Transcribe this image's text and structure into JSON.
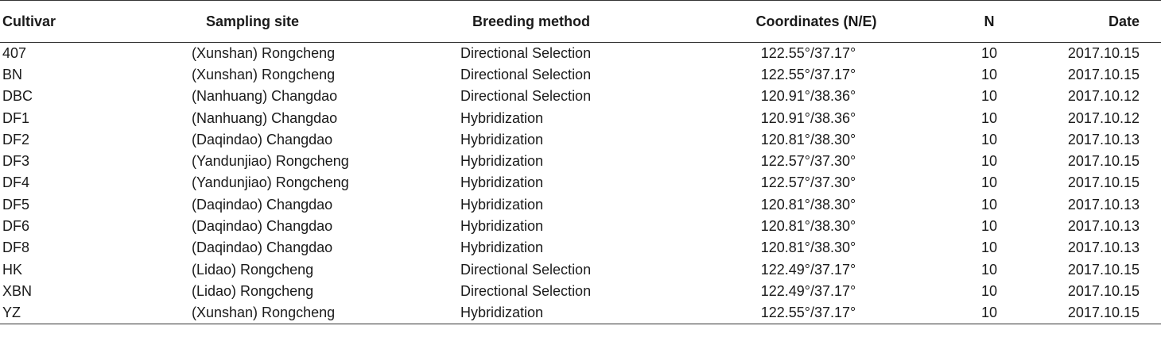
{
  "table": {
    "headers": [
      "Cultivar",
      "Sampling site",
      "Breeding method",
      "Coordinates (N/E)",
      "N",
      "Date"
    ],
    "rows": [
      [
        "407",
        "(Xunshan) Rongcheng",
        "Directional Selection",
        "122.55°/37.17°",
        "10",
        "2017.10.15"
      ],
      [
        "BN",
        "(Xunshan) Rongcheng",
        "Directional Selection",
        "122.55°/37.17°",
        "10",
        "2017.10.15"
      ],
      [
        "DBC",
        "(Nanhuang) Changdao",
        "Directional Selection",
        "120.91°/38.36°",
        "10",
        "2017.10.12"
      ],
      [
        "DF1",
        "(Nanhuang) Changdao",
        "Hybridization",
        "120.91°/38.36°",
        "10",
        "2017.10.12"
      ],
      [
        "DF2",
        "(Daqindao) Changdao",
        "Hybridization",
        "120.81°/38.30°",
        "10",
        "2017.10.13"
      ],
      [
        "DF3",
        "(Yandunjiao) Rongcheng",
        "Hybridization",
        "122.57°/37.30°",
        "10",
        "2017.10.15"
      ],
      [
        "DF4",
        "(Yandunjiao) Rongcheng",
        "Hybridization",
        "122.57°/37.30°",
        "10",
        "2017.10.15"
      ],
      [
        "DF5",
        "(Daqindao) Changdao",
        "Hybridization",
        "120.81°/38.30°",
        "10",
        "2017.10.13"
      ],
      [
        "DF6",
        "(Daqindao) Changdao",
        "Hybridization",
        "120.81°/38.30°",
        "10",
        "2017.10.13"
      ],
      [
        "DF8",
        "(Daqindao) Changdao",
        "Hybridization",
        "120.81°/38.30°",
        "10",
        "2017.10.13"
      ],
      [
        "HK",
        "(Lidao) Rongcheng",
        "Directional Selection",
        "122.49°/37.17°",
        "10",
        "2017.10.15"
      ],
      [
        "XBN",
        "(Lidao) Rongcheng",
        "Directional Selection",
        "122.49°/37.17°",
        "10",
        "2017.10.15"
      ],
      [
        "YZ",
        "(Xunshan) Rongcheng",
        "Hybridization",
        "122.55°/37.17°",
        "10",
        "2017.10.15"
      ]
    ]
  }
}
